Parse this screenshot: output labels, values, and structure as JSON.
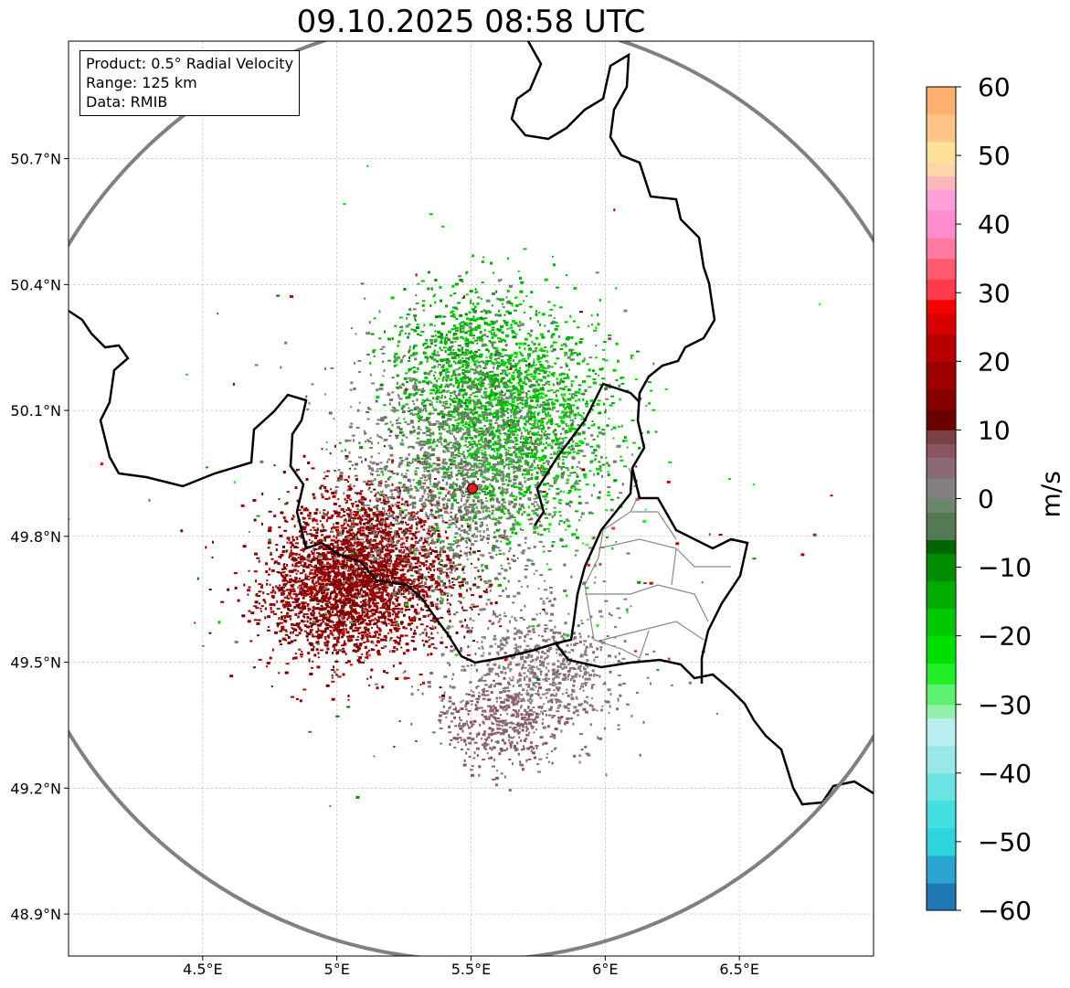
{
  "title": "09.10.2025 08:58 UTC",
  "info": {
    "product": "Product: 0.5° Radial Velocity",
    "range": "Range: 125 km",
    "data": "Data: RMIB"
  },
  "map": {
    "lon_range": [
      4.0,
      7.0
    ],
    "lat_range": [
      48.8,
      50.98
    ],
    "lon_ticks": [
      {
        "value": 4.5,
        "label": "4.5°E"
      },
      {
        "value": 5.0,
        "label": "5°E"
      },
      {
        "value": 5.5,
        "label": "5.5°E"
      },
      {
        "value": 6.0,
        "label": "6°E"
      },
      {
        "value": 6.5,
        "label": "6.5°E"
      }
    ],
    "lat_ticks": [
      {
        "value": 50.7,
        "label": "50.7°N"
      },
      {
        "value": 50.4,
        "label": "50.4°N"
      },
      {
        "value": 50.1,
        "label": "50.1°N"
      },
      {
        "value": 49.8,
        "label": "49.8°N"
      },
      {
        "value": 49.5,
        "label": "49.5°N"
      },
      {
        "value": 49.2,
        "label": "49.2°N"
      },
      {
        "value": 48.9,
        "label": "48.9°N"
      }
    ],
    "radar_site": {
      "lon": 5.505,
      "lat": 49.914
    },
    "range_km": 125
  },
  "colorbar": {
    "label": "m/s",
    "min": -60,
    "max": 60,
    "ticks": [
      {
        "value": 60,
        "label": "60"
      },
      {
        "value": 50,
        "label": "50"
      },
      {
        "value": 40,
        "label": "40"
      },
      {
        "value": 30,
        "label": "30"
      },
      {
        "value": 20,
        "label": "20"
      },
      {
        "value": 10,
        "label": "10"
      },
      {
        "value": 0,
        "label": "0"
      },
      {
        "value": -10,
        "label": "−10"
      },
      {
        "value": -20,
        "label": "−20"
      },
      {
        "value": -30,
        "label": "−30"
      },
      {
        "value": -40,
        "label": "−40"
      },
      {
        "value": -50,
        "label": "−50"
      },
      {
        "value": -60,
        "label": "−60"
      }
    ],
    "stops": [
      {
        "v": -60,
        "c": "#1f77b4"
      },
      {
        "v": -56,
        "c": "#2ba4cf"
      },
      {
        "v": -52,
        "c": "#2cd5dc"
      },
      {
        "v": -48,
        "c": "#40dede"
      },
      {
        "v": -44,
        "c": "#6be3e3"
      },
      {
        "v": -40,
        "c": "#98e8e8"
      },
      {
        "v": -36,
        "c": "#b8eef0"
      },
      {
        "v": -32,
        "c": "#93f0a9"
      },
      {
        "v": -30,
        "c": "#5cf26f"
      },
      {
        "v": -27,
        "c": "#20ee26"
      },
      {
        "v": -24,
        "c": "#00e000"
      },
      {
        "v": -20,
        "c": "#00c800"
      },
      {
        "v": -16,
        "c": "#00ac00"
      },
      {
        "v": -12,
        "c": "#008c00"
      },
      {
        "v": -8,
        "c": "#006600"
      },
      {
        "v": -6,
        "c": "#547a53"
      },
      {
        "v": -2,
        "c": "#6a8769"
      },
      {
        "v": 0,
        "c": "#858080"
      },
      {
        "v": 3,
        "c": "#8a6a74"
      },
      {
        "v": 6,
        "c": "#8a5560"
      },
      {
        "v": 8,
        "c": "#7a4044"
      },
      {
        "v": 10,
        "c": "#6b0000"
      },
      {
        "v": 13,
        "c": "#860000"
      },
      {
        "v": 16,
        "c": "#9e0000"
      },
      {
        "v": 20,
        "c": "#b80000"
      },
      {
        "v": 24,
        "c": "#d80000"
      },
      {
        "v": 27,
        "c": "#f50000"
      },
      {
        "v": 29,
        "c": "#ff3a4c"
      },
      {
        "v": 32,
        "c": "#ff5a70"
      },
      {
        "v": 35,
        "c": "#ff7aa0"
      },
      {
        "v": 38,
        "c": "#ff8ccc"
      },
      {
        "v": 42,
        "c": "#ff9fd6"
      },
      {
        "v": 45,
        "c": "#ffb7bb"
      },
      {
        "v": 47,
        "c": "#ffd6aa"
      },
      {
        "v": 49,
        "c": "#ffe29a"
      },
      {
        "v": 52,
        "c": "#ffc488"
      },
      {
        "v": 56,
        "c": "#ffb070"
      },
      {
        "v": 60,
        "c": "#ff9a50"
      }
    ]
  },
  "colors": {
    "range_ring": "#808080",
    "border": "#000000",
    "admin_border": "#888888",
    "grid": "#bbbbbb",
    "radar_site": "#e41a1c"
  }
}
